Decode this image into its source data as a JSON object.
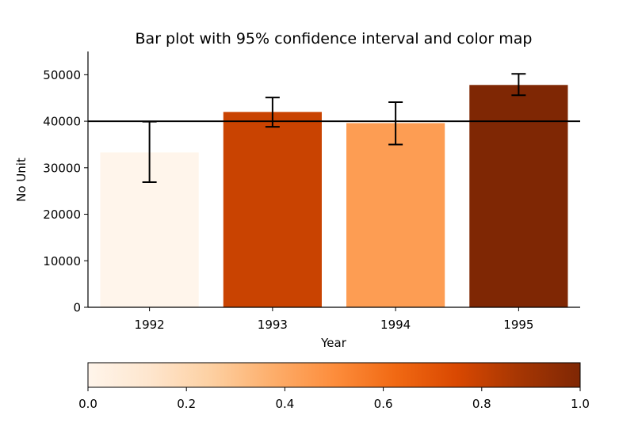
{
  "chart_data": {
    "type": "bar",
    "title": "Bar plot with 95% confidence interval and color map",
    "xlabel": "Year",
    "ylabel": "No Unit",
    "categories": [
      "1992",
      "1993",
      "1994",
      "1995"
    ],
    "values": [
      33300,
      42000,
      39600,
      47800
    ],
    "ci_low": [
      26900,
      38800,
      35000,
      45600
    ],
    "ci_high": [
      39900,
      45100,
      44100,
      50200
    ],
    "colormap_values": [
      0.0,
      0.79,
      0.4,
      1.0
    ],
    "bar_colors": [
      "#fff5eb",
      "#c94301",
      "#fd9d53",
      "#7f2704"
    ],
    "reference_line": 40000,
    "ylim": [
      0,
      55000
    ],
    "yticks": [
      "0",
      "10000",
      "20000",
      "30000",
      "40000",
      "50000"
    ],
    "grid": false,
    "colorbar": {
      "colormap": "Oranges",
      "ticks": [
        "0.0",
        "0.2",
        "0.4",
        "0.6",
        "0.8",
        "1.0"
      ],
      "placement": "bottom",
      "gradient": [
        "#fff5eb",
        "#fee6ce",
        "#fdd0a2",
        "#fdae6b",
        "#fd8d3c",
        "#f16913",
        "#d94801",
        "#a63603",
        "#7f2704"
      ]
    }
  }
}
